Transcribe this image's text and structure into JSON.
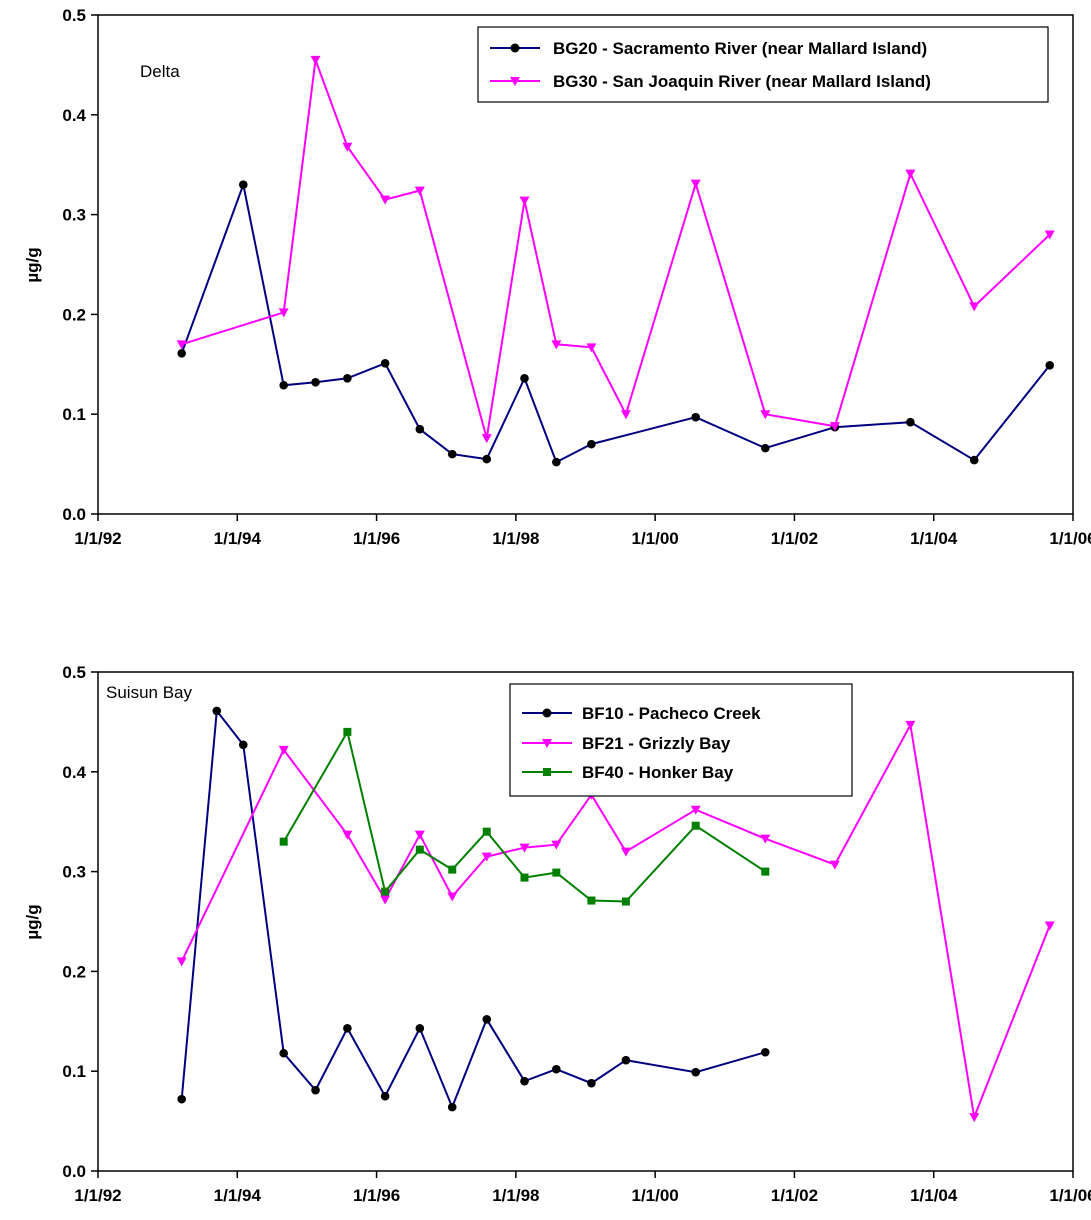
{
  "chart_data": [
    {
      "type": "line",
      "annotation": "Delta",
      "ylabel": "µg/g",
      "xlabel": "",
      "ylim": [
        0,
        0.5
      ],
      "xlim": [
        "1992-01-01",
        "2006-01-01"
      ],
      "yticks": [
        "0.0",
        "0.1",
        "0.2",
        "0.3",
        "0.4",
        "0.5"
      ],
      "xticks": [
        "1/1/92",
        "1/1/94",
        "1/1/96",
        "1/1/98",
        "1/1/00",
        "1/1/02",
        "1/1/04",
        "1/1/06"
      ],
      "legend_position": "top-right",
      "series": [
        {
          "name": "BG20 - Sacramento River (near Mallard Island)",
          "color": "#000080",
          "marker": "circle",
          "x": [
            "1993-03-15",
            "1994-02-01",
            "1994-09-01",
            "1995-02-15",
            "1995-08-01",
            "1996-02-15",
            "1996-08-15",
            "1997-02-01",
            "1997-08-01",
            "1998-02-15",
            "1998-08-01",
            "1999-02-01",
            "2000-08-01",
            "2001-08-01",
            "2002-08-01",
            "2003-09-01",
            "2004-08-01",
            "2005-09-01"
          ],
          "values": [
            0.161,
            0.33,
            0.129,
            0.132,
            0.136,
            0.151,
            0.085,
            0.06,
            0.055,
            0.136,
            0.052,
            0.07,
            0.097,
            0.066,
            0.087,
            0.092,
            0.054,
            0.149
          ]
        },
        {
          "name": "BG30 - San Joaquin River (near Mallard Island)",
          "color": "#ff00ff",
          "marker": "triangle-down",
          "x": [
            "1993-03-15",
            "1994-09-01",
            "1995-02-15",
            "1995-08-01",
            "1996-02-15",
            "1996-08-15",
            "1997-08-01",
            "1998-02-15",
            "1998-08-01",
            "1999-02-01",
            "1999-08-01",
            "2000-08-01",
            "2001-08-01",
            "2002-08-01",
            "2003-09-01",
            "2004-08-01",
            "2005-09-01"
          ],
          "values": [
            0.17,
            0.202,
            0.455,
            0.368,
            0.315,
            0.324,
            0.076,
            0.314,
            0.17,
            0.167,
            0.1,
            0.331,
            0.1,
            0.088,
            0.341,
            0.208,
            0.28
          ]
        }
      ]
    },
    {
      "type": "line",
      "annotation": "Suisun Bay",
      "ylabel": "µg/g",
      "xlabel": "",
      "ylim": [
        0,
        0.5
      ],
      "xlim": [
        "1992-01-01",
        "2006-01-01"
      ],
      "yticks": [
        "0.0",
        "0.1",
        "0.2",
        "0.3",
        "0.4",
        "0.5"
      ],
      "xticks": [
        "1/1/92",
        "1/1/94",
        "1/1/96",
        "1/1/98",
        "1/1/00",
        "1/1/02",
        "1/1/04",
        "1/1/06"
      ],
      "legend_position": "top-center",
      "series": [
        {
          "name": "BF10 - Pacheco Creek",
          "color": "#000080",
          "marker": "circle",
          "x": [
            "1993-03-15",
            "1993-09-15",
            "1994-02-01",
            "1994-09-01",
            "1995-02-15",
            "1995-08-01",
            "1996-02-15",
            "1996-08-15",
            "1997-02-01",
            "1997-08-01",
            "1998-02-15",
            "1998-08-01",
            "1999-02-01",
            "1999-08-01",
            "2000-08-01",
            "2001-08-01"
          ],
          "values": [
            0.072,
            0.461,
            0.427,
            0.118,
            0.081,
            0.143,
            0.075,
            0.143,
            0.064,
            0.152,
            0.09,
            0.102,
            0.088,
            0.111,
            0.099,
            0.119
          ]
        },
        {
          "name": "BF21 - Grizzly Bay",
          "color": "#ff00ff",
          "marker": "triangle-down",
          "x": [
            "1993-03-15",
            "1994-09-01",
            "1995-08-01",
            "1996-02-15",
            "1996-08-15",
            "1997-02-01",
            "1997-08-01",
            "1998-02-15",
            "1998-08-01",
            "1999-02-01",
            "1999-08-01",
            "2000-08-01",
            "2001-08-01",
            "2002-08-01",
            "2003-09-01",
            "2004-08-01",
            "2005-09-01"
          ],
          "values": [
            0.21,
            0.422,
            0.337,
            0.272,
            0.337,
            0.275,
            0.315,
            0.324,
            0.327,
            0.377,
            0.32,
            0.362,
            0.333,
            0.307,
            0.447,
            0.054,
            0.246
          ]
        },
        {
          "name": "BF40 - Honker Bay",
          "color": "#008000",
          "marker": "square",
          "x": [
            "1994-09-01",
            "1995-08-01",
            "1996-02-15",
            "1996-08-15",
            "1997-02-01",
            "1997-08-01",
            "1998-02-15",
            "1998-08-01",
            "1999-02-01",
            "1999-08-01",
            "2000-08-01",
            "2001-08-01"
          ],
          "values": [
            0.33,
            0.44,
            0.28,
            0.322,
            0.302,
            0.34,
            0.294,
            0.299,
            0.271,
            0.27,
            0.346,
            0.3
          ]
        }
      ]
    }
  ]
}
